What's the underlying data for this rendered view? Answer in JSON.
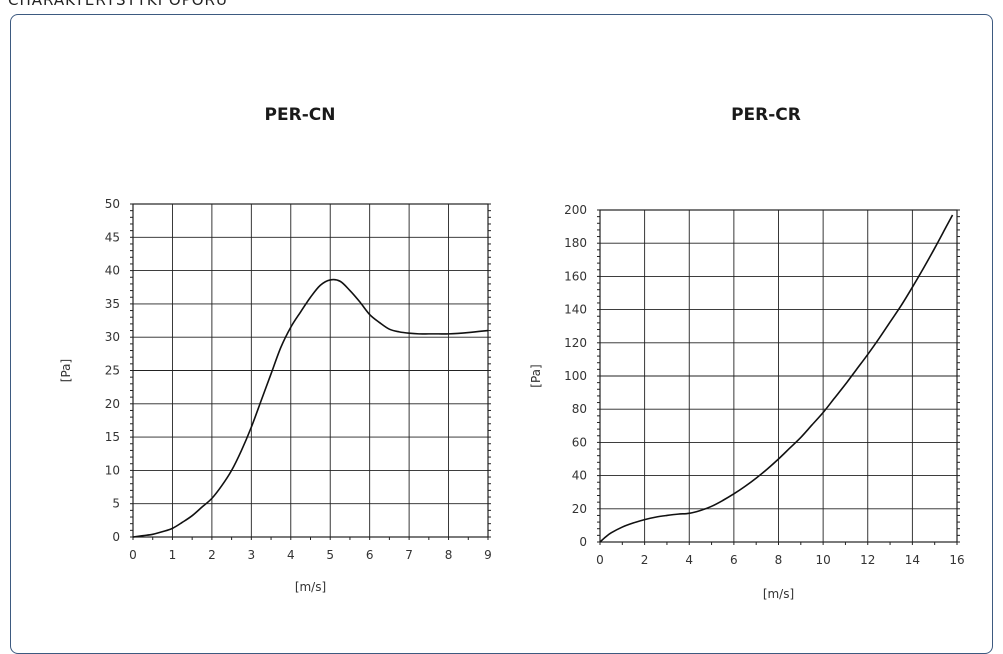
{
  "page": {
    "heading": "CHARAKTERYSTYKI OPORU"
  },
  "chart_data": [
    {
      "type": "line",
      "title": "PER-CN",
      "xlabel": "[m/s]",
      "ylabel": "[Pa]",
      "xlim": [
        0,
        9
      ],
      "ylim": [
        0,
        50
      ],
      "xticks": [
        0,
        1,
        2,
        3,
        4,
        5,
        6,
        7,
        8,
        9
      ],
      "yticks": [
        0,
        5,
        10,
        15,
        20,
        25,
        30,
        35,
        40,
        45,
        50
      ],
      "grid": true,
      "series": [
        {
          "x": [
            0,
            0.25,
            0.5,
            0.75,
            1,
            1.25,
            1.5,
            1.75,
            2,
            2.25,
            2.5,
            2.75,
            3,
            3.25,
            3.5,
            3.75,
            4,
            4.25,
            4.5,
            4.75,
            5,
            5.25,
            5.5,
            5.75,
            6,
            6.25,
            6.5,
            6.75,
            7,
            7.25,
            7.5,
            7.75,
            8,
            8.5,
            9
          ],
          "y": [
            0,
            0.2,
            0.4,
            0.8,
            1.3,
            2.2,
            3.2,
            4.5,
            5.8,
            7.7,
            10,
            13,
            16.5,
            20.5,
            24.5,
            28.5,
            31.5,
            33.8,
            36,
            37.8,
            38.6,
            38.4,
            37,
            35.3,
            33.4,
            32.2,
            31.2,
            30.8,
            30.6,
            30.5,
            30.5,
            30.5,
            30.5,
            30.7,
            31
          ]
        }
      ]
    },
    {
      "type": "line",
      "title": "PER-CR",
      "xlabel": "[m/s]",
      "ylabel": "[Pa]",
      "xlim": [
        0,
        16
      ],
      "ylim": [
        0,
        200
      ],
      "xticks": [
        0,
        2,
        4,
        6,
        8,
        10,
        12,
        14,
        16
      ],
      "yticks": [
        0,
        20,
        40,
        60,
        80,
        100,
        120,
        140,
        160,
        180,
        200
      ],
      "grid": true,
      "series": [
        {
          "x": [
            0,
            0.25,
            0.5,
            1,
            1.5,
            2,
            2.5,
            3,
            3.5,
            4,
            4.5,
            5,
            5.5,
            6,
            6.5,
            7,
            7.5,
            8,
            8.5,
            9,
            9.5,
            10,
            10.5,
            11,
            11.5,
            12,
            12.5,
            13,
            13.5,
            14,
            14.5,
            15,
            15.5,
            15.8
          ],
          "y": [
            0,
            3,
            5.5,
            9,
            11.5,
            13.5,
            15,
            16,
            16.8,
            17.3,
            19,
            21.5,
            25,
            29,
            33.5,
            38.5,
            44,
            50,
            56.5,
            63,
            70.5,
            78,
            86.5,
            95,
            104,
            113,
            122.5,
            132.5,
            142.5,
            153.5,
            165,
            177,
            189.5,
            197
          ]
        }
      ]
    }
  ]
}
